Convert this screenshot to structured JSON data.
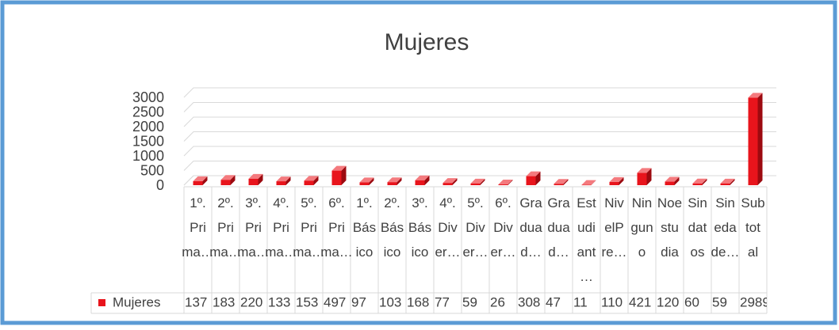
{
  "chart_data": {
    "type": "bar",
    "title": "Mujeres",
    "categories": [
      "1º.Prima…",
      "2º.Prima…",
      "3º.Prima…",
      "4º.Prima…",
      "5º.Prima…",
      "6º.Prima…",
      "1º.Básico",
      "2º.Básico",
      "3º.Básico",
      "4º.Diver…",
      "5º.Diver…",
      "6º.Diver…",
      "Graduad…",
      "Graduad…",
      "Estudiant…",
      "NivelPre…",
      "Ninguno",
      "Noestudia",
      "Sindatos",
      "Sinedade…",
      "Subtotal"
    ],
    "series": [
      {
        "name": "Mujeres",
        "color": "#e8141c",
        "values": [
          137,
          183,
          220,
          133,
          153,
          497,
          97,
          103,
          168,
          77,
          59,
          26,
          308,
          47,
          11,
          110,
          421,
          120,
          60,
          59,
          2989
        ]
      }
    ],
    "ylim": [
      0,
      3000
    ],
    "yticks": [
      0,
      500,
      1000,
      1500,
      2000,
      2500,
      3000
    ],
    "grid": true
  }
}
